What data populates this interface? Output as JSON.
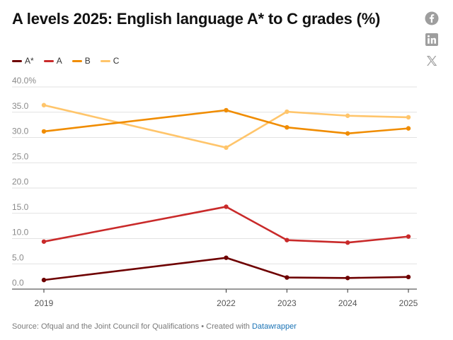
{
  "title": "A levels 2025: English language A* to C grades (%)",
  "social": [
    {
      "name": "facebook-icon"
    },
    {
      "name": "linkedin-icon"
    },
    {
      "name": "x-icon"
    }
  ],
  "footer": {
    "source": "Source: Ofqual and the Joint Council for Qualifications",
    "separator": "•",
    "created_with": "Created with",
    "tool": "Datawrapper"
  },
  "chart_data": {
    "type": "line",
    "x": [
      2019,
      2022,
      2023,
      2024,
      2025
    ],
    "x_tick_labels": [
      "2019",
      "2022",
      "2023",
      "2024",
      "2025"
    ],
    "y_tick_labels": [
      "0.0",
      "5.0",
      "10.0",
      "15.0",
      "20.0",
      "25.0",
      "30.0",
      "35.0",
      "40.0%"
    ],
    "y_ticks": [
      0,
      5,
      10,
      15,
      20,
      25,
      30,
      35,
      40
    ],
    "ylim": [
      0,
      40
    ],
    "grid": true,
    "legend_position": "top-left",
    "series": [
      {
        "name": "A*",
        "color": "#6e0000",
        "values": [
          1.8,
          6.2,
          2.3,
          2.2,
          2.4
        ]
      },
      {
        "name": "A",
        "color": "#c92a2a",
        "values": [
          9.4,
          16.3,
          9.7,
          9.2,
          10.4
        ]
      },
      {
        "name": "B",
        "color": "#f08c00",
        "values": [
          31.2,
          35.4,
          32.0,
          30.8,
          31.8
        ]
      },
      {
        "name": "C",
        "color": "#ffc56b",
        "values": [
          36.4,
          28.0,
          35.1,
          34.3,
          34.0
        ]
      }
    ]
  }
}
